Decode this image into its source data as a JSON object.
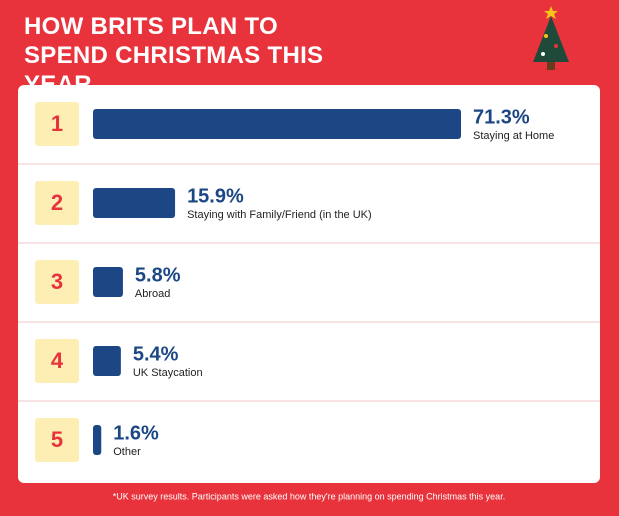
{
  "chart_data": {
    "type": "bar",
    "title": "HOW BRITS PLAN TO SPEND CHRISTMAS THIS YEAR",
    "ranks": [
      "1",
      "2",
      "3",
      "4",
      "5"
    ],
    "categories": [
      "Staying at Home",
      "Staying with Family/Friend (in the UK)",
      "Abroad",
      "UK Staycation",
      "Other"
    ],
    "values": [
      71.3,
      15.9,
      5.8,
      5.4,
      1.6
    ],
    "value_labels": [
      "71.3%",
      "15.9%",
      "5.8%",
      "5.4%",
      "1.6%"
    ],
    "color": "#1c4784",
    "footnote": "*UK survey results. Participants were asked how they're planning on spending Christmas this year."
  }
}
